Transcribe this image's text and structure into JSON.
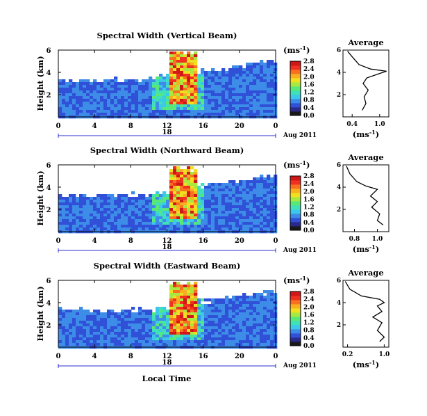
{
  "figure": {
    "date_label": "Aug 2011",
    "xlabel": "Local Time"
  },
  "colorbar": {
    "unit_label": "(ms",
    "unit_exp": "-1",
    "unit_close": ")",
    "colors": [
      "#1a1a1a",
      "#2a2a8c",
      "#3050d8",
      "#3c8ce8",
      "#3cc8e8",
      "#40e0b8",
      "#58e878",
      "#a8e840",
      "#f0e020",
      "#f8b020",
      "#f87020",
      "#f03020",
      "#d01818"
    ]
  },
  "chart_data": [
    {
      "type": "heatmap",
      "title": "Spectral Width (Vertical Beam)",
      "ylabel": "Height (km)",
      "y_ticks": [
        2,
        4,
        6
      ],
      "ylim": [
        0,
        6
      ],
      "x_ticks": [
        "0",
        "4",
        "8",
        "12",
        "16",
        "20",
        "0"
      ],
      "xlim": [
        0,
        24
      ],
      "day_label": "18",
      "date_label": "Aug 2011",
      "cbar_ticks": [
        "0.0",
        "0.4",
        "0.8",
        "1.2",
        "1.6",
        "2.0",
        "2.4",
        "2.8"
      ],
      "profile": {
        "title": "Average",
        "x_ticks": [
          "0.4",
          "1.0"
        ],
        "xlim": [
          0.2,
          1.2
        ],
        "xlabel": "(ms",
        "xlabel_exp": "-1",
        "xlabel_close": ")",
        "y_ticks": [
          2,
          4,
          6
        ],
        "values": [
          [
            0.62,
            0.6
          ],
          [
            0.7,
            1.2
          ],
          [
            0.66,
            1.8
          ],
          [
            0.75,
            2.4
          ],
          [
            0.64,
            3.0
          ],
          [
            0.72,
            3.5
          ],
          [
            1.0,
            3.9
          ],
          [
            1.15,
            4.1
          ],
          [
            0.8,
            4.3
          ],
          [
            0.55,
            4.7
          ],
          [
            0.4,
            5.4
          ],
          [
            0.3,
            5.9
          ]
        ]
      }
    },
    {
      "type": "heatmap",
      "title": "Spectral Width (Northward Beam)",
      "ylabel": "Height (km)",
      "y_ticks": [
        2,
        4,
        6
      ],
      "ylim": [
        0,
        6
      ],
      "x_ticks": [
        "0",
        "4",
        "8",
        "12",
        "16",
        "20",
        "0"
      ],
      "xlim": [
        0,
        24
      ],
      "day_label": "18",
      "date_label": "Aug 2011",
      "cbar_ticks": [
        "0.0",
        "0.4",
        "0.8",
        "1.2",
        "1.6",
        "2.0",
        "2.4",
        "2.8"
      ],
      "profile": {
        "title": "Average",
        "x_ticks": [
          "0.8",
          "1.0"
        ],
        "xlim": [
          0.7,
          1.1
        ],
        "xlabel": "(ms",
        "xlabel_exp": "-1",
        "xlabel_close": ")",
        "y_ticks": [
          2,
          4,
          6
        ],
        "values": [
          [
            1.05,
            0.6
          ],
          [
            1.0,
            1.0
          ],
          [
            1.02,
            1.6
          ],
          [
            0.95,
            2.2
          ],
          [
            1.0,
            2.7
          ],
          [
            0.94,
            3.2
          ],
          [
            1.0,
            3.8
          ],
          [
            0.9,
            4.1
          ],
          [
            0.82,
            4.5
          ],
          [
            0.76,
            5.2
          ],
          [
            0.73,
            5.9
          ]
        ]
      }
    },
    {
      "type": "heatmap",
      "title": "Spectral Width (Eastward Beam)",
      "ylabel": "Height (km)",
      "y_ticks": [
        2,
        4,
        6
      ],
      "ylim": [
        0,
        6
      ],
      "x_ticks": [
        "0",
        "4",
        "8",
        "12",
        "16",
        "20",
        "0"
      ],
      "xlim": [
        0,
        24
      ],
      "day_label": "18",
      "date_label": "Aug 2011",
      "cbar_ticks": [
        "0.0",
        "0.4",
        "0.8",
        "1.2",
        "1.6",
        "2.0",
        "2.4",
        "2.8"
      ],
      "profile": {
        "title": "Average",
        "x_ticks": [
          "0.2",
          "1.0"
        ],
        "xlim": [
          0.1,
          1.1
        ],
        "xlabel": "(ms",
        "xlabel_exp": "-1",
        "xlabel_close": ")",
        "y_ticks": [
          2,
          4,
          6
        ],
        "values": [
          [
            0.9,
            0.5
          ],
          [
            1.0,
            0.9
          ],
          [
            0.85,
            1.5
          ],
          [
            0.95,
            2.2
          ],
          [
            0.75,
            2.7
          ],
          [
            0.95,
            3.2
          ],
          [
            0.85,
            3.7
          ],
          [
            1.0,
            4.0
          ],
          [
            0.9,
            4.3
          ],
          [
            0.5,
            4.6
          ],
          [
            0.25,
            5.2
          ],
          [
            0.15,
            5.9
          ]
        ]
      }
    }
  ]
}
